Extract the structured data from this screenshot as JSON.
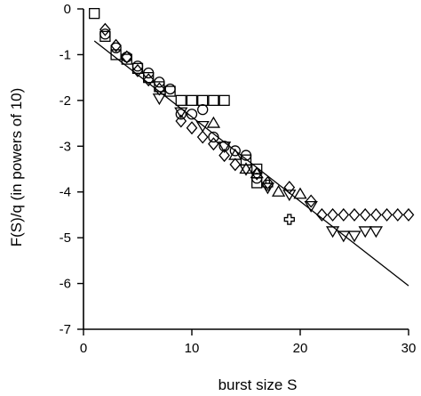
{
  "chart_data": {
    "type": "scatter",
    "xlabel": "burst size S",
    "ylabel": "F(S)/q (in powers of 10)",
    "xlim": [
      0,
      30
    ],
    "ylim": [
      -7,
      0
    ],
    "x_ticks": [
      0,
      10,
      20,
      30
    ],
    "y_ticks": [
      0,
      -1,
      -2,
      -3,
      -4,
      -5,
      -6,
      -7
    ],
    "x_tick_labels": [
      "0",
      "10",
      "20",
      "30"
    ],
    "y_tick_labels": [
      "0",
      "-1",
      "-2",
      "-3",
      "-4",
      "-5",
      "-6",
      "-7"
    ],
    "grid": false,
    "legend": "none",
    "line": {
      "x": [
        1,
        30
      ],
      "y": [
        -0.7,
        -6.05
      ]
    },
    "series": [
      {
        "marker": "square",
        "points": [
          [
            1,
            -0.1
          ],
          [
            2,
            -0.6
          ],
          [
            3,
            -1.0
          ],
          [
            4,
            -1.1
          ],
          [
            5,
            -1.3
          ],
          [
            6,
            -1.5
          ],
          [
            7,
            -1.7
          ],
          [
            8,
            -1.8
          ],
          [
            9,
            -2.0
          ],
          [
            10,
            -2.0
          ],
          [
            11,
            -2.0
          ],
          [
            12,
            -2.0
          ],
          [
            13,
            -2.0
          ],
          [
            15,
            -3.3
          ],
          [
            16,
            -3.5
          ],
          [
            16,
            -3.8
          ]
        ]
      },
      {
        "marker": "circle",
        "points": [
          [
            2,
            -0.55
          ],
          [
            3,
            -0.85
          ],
          [
            4,
            -1.05
          ],
          [
            5,
            -1.25
          ],
          [
            6,
            -1.4
          ],
          [
            7,
            -1.6
          ],
          [
            8,
            -1.75
          ],
          [
            9,
            -2.3
          ],
          [
            10,
            -2.3
          ],
          [
            11,
            -2.2
          ],
          [
            12,
            -2.8
          ],
          [
            13,
            -3.0
          ],
          [
            14,
            -3.1
          ],
          [
            15,
            -3.2
          ],
          [
            16,
            -3.7
          ]
        ]
      },
      {
        "marker": "diamond",
        "points": [
          [
            2,
            -0.45
          ],
          [
            3,
            -0.8
          ],
          [
            4,
            -1.05
          ],
          [
            5,
            -1.35
          ],
          [
            6,
            -1.55
          ],
          [
            7,
            -1.75
          ],
          [
            9,
            -2.45
          ],
          [
            10,
            -2.6
          ],
          [
            11,
            -2.8
          ],
          [
            12,
            -2.95
          ],
          [
            13,
            -3.2
          ],
          [
            14,
            -3.4
          ],
          [
            16,
            -3.6
          ],
          [
            17,
            -3.8
          ],
          [
            19,
            -3.9
          ],
          [
            21,
            -4.2
          ],
          [
            22,
            -4.5
          ],
          [
            23,
            -4.5
          ],
          [
            24,
            -4.5
          ],
          [
            25,
            -4.5
          ],
          [
            26,
            -4.5
          ],
          [
            27,
            -4.5
          ],
          [
            28,
            -4.5
          ],
          [
            29,
            -4.5
          ],
          [
            30,
            -4.5
          ]
        ]
      },
      {
        "marker": "triangle-down",
        "points": [
          [
            7,
            -1.95
          ],
          [
            9,
            -2.25
          ],
          [
            11,
            -2.55
          ],
          [
            13,
            -3.0
          ],
          [
            15,
            -3.5
          ],
          [
            17,
            -3.9
          ],
          [
            19,
            -4.05
          ],
          [
            21,
            -4.3
          ],
          [
            23,
            -4.85
          ],
          [
            24,
            -4.95
          ],
          [
            25,
            -4.95
          ],
          [
            26,
            -4.85
          ],
          [
            27,
            -4.85
          ]
        ]
      },
      {
        "marker": "triangle-up",
        "points": [
          [
            12,
            -2.5
          ],
          [
            14,
            -3.2
          ],
          [
            15,
            -3.5
          ],
          [
            16,
            -3.6
          ],
          [
            18,
            -4.0
          ],
          [
            20,
            -4.05
          ]
        ]
      },
      {
        "marker": "cross",
        "points": [
          [
            17,
            -3.85
          ],
          [
            19,
            -4.6
          ]
        ]
      }
    ]
  }
}
